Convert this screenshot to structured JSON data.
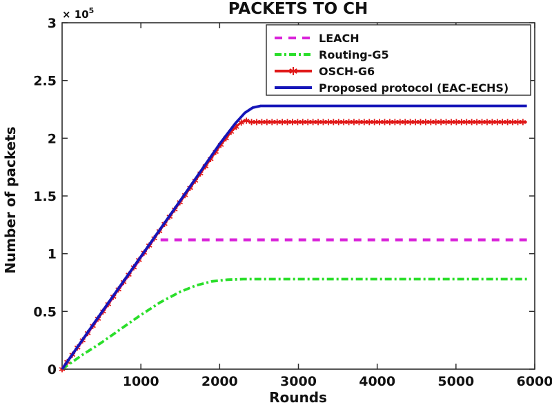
{
  "chart_data": {
    "type": "line",
    "title": "PACKETS TO CH",
    "xlabel": "Rounds",
    "ylabel": "Number of packets",
    "y_multiplier": {
      "base": "× 10",
      "exponent": "5"
    },
    "xlim": [
      0,
      6000
    ],
    "ylim": [
      0,
      300000
    ],
    "grid": false,
    "legend_position": "inside-top-right",
    "xticks": [
      1000,
      2000,
      3000,
      4000,
      5000,
      6000
    ],
    "xtick_labels": [
      "1000",
      "2000",
      "3000",
      "4000",
      "5000",
      "6000"
    ],
    "yticks": [
      0,
      50000,
      100000,
      150000,
      200000,
      250000,
      300000
    ],
    "ytick_labels": [
      "0",
      "0.5",
      "1",
      "1.5",
      "2",
      "2.5",
      "3"
    ],
    "series": [
      {
        "name": "LEACH",
        "color": "#d922d9",
        "linestyle": "dashed",
        "marker": "none",
        "x": [
          0,
          300,
          600,
          900,
          1155,
          5900
        ],
        "y": [
          0,
          29000,
          58000,
          87000,
          112000,
          112000
        ]
      },
      {
        "name": "Routing-G5",
        "color": "#2ade2a",
        "linestyle": "dashdot",
        "marker": "none",
        "x": [
          0,
          250,
          500,
          750,
          1000,
          1250,
          1500,
          1700,
          1900,
          2100,
          2300,
          5900
        ],
        "y": [
          0,
          12000,
          23000,
          35000,
          47000,
          58000,
          67000,
          72500,
          76000,
          77500,
          78000,
          78000
        ]
      },
      {
        "name": "OSCH-G6",
        "color": "#e01818",
        "linestyle": "solid",
        "marker": "*",
        "marker_every_x": 65,
        "x": [
          0,
          500,
          1000,
          1500,
          2000,
          2150,
          2250,
          2320,
          2400,
          2500,
          5900
        ],
        "y": [
          0,
          48000,
          97000,
          145000,
          193000,
          206000,
          212500,
          215500,
          214000,
          214000,
          214000
        ]
      },
      {
        "name": "Proposed protocol (EAC-ECHS)",
        "color": "#1515b8",
        "linestyle": "solid",
        "marker": "none",
        "x": [
          0,
          500,
          1000,
          1500,
          2000,
          2200,
          2320,
          2420,
          2520,
          5900
        ],
        "y": [
          0,
          49000,
          97500,
          146000,
          195000,
          213000,
          222000,
          226500,
          228000,
          228000
        ]
      }
    ]
  },
  "colors": {
    "axis": "#2b2b2b",
    "text": "#111111",
    "background": "#ffffff"
  }
}
